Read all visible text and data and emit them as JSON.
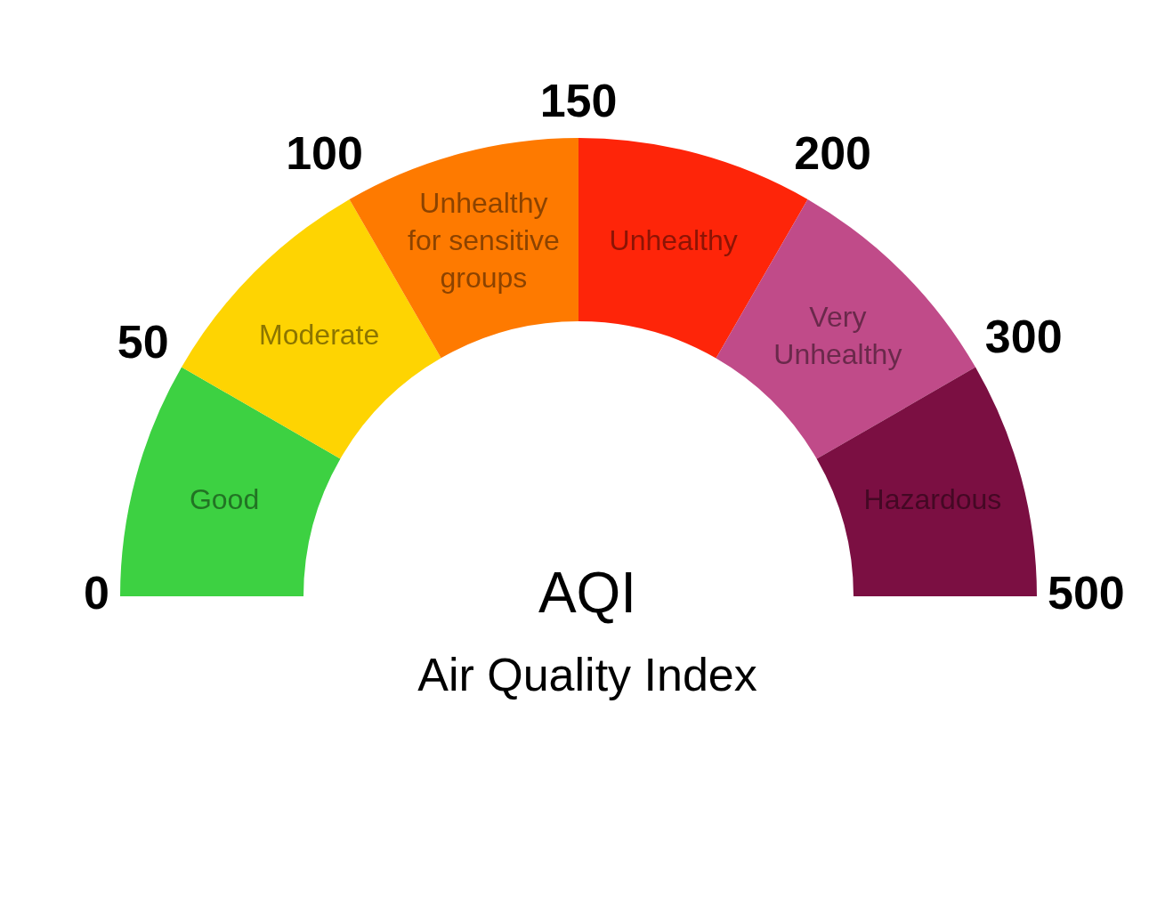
{
  "chart_data": {
    "type": "donut",
    "title": "AQI",
    "subtitle": "Air Quality Index",
    "categories": [
      "Good",
      "Moderate",
      "Unhealthy for sensitive groups",
      "Unhealthy",
      "Very Unhealthy",
      "Hazardous"
    ],
    "values": [
      16.67,
      16.67,
      16.66,
      16.67,
      16.67,
      16.66
    ],
    "colors": [
      "#3dd142",
      "#fed402",
      "#fe7a00",
      "#fe2509",
      "#c04b89",
      "#7b0f42"
    ],
    "annotations": [
      "0",
      "50",
      "100",
      "150",
      "200",
      "300",
      "500"
    ],
    "legend": false
  }
}
